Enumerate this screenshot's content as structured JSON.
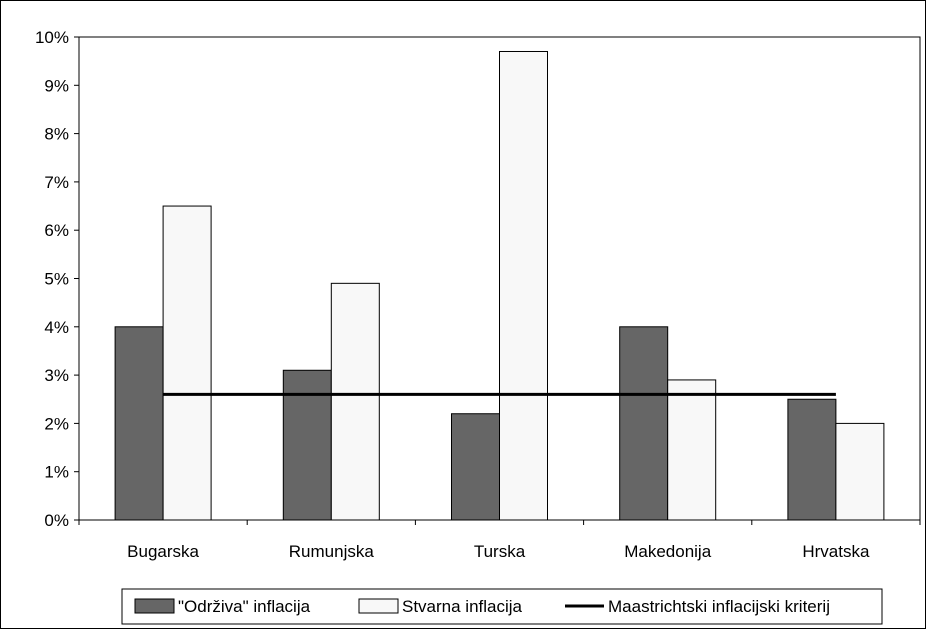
{
  "chart_data": {
    "type": "bar",
    "categories": [
      "Bugarska",
      "Rumunjska",
      "Turska",
      "Makedonija",
      "Hrvatska"
    ],
    "series": [
      {
        "name": "\"Održiva\" inflacija",
        "values": [
          4.0,
          3.1,
          2.2,
          4.0,
          2.5
        ],
        "color": "#666666"
      },
      {
        "name": "Stvarna inflacija",
        "values": [
          6.5,
          4.9,
          9.7,
          2.9,
          2.0
        ],
        "color": "#f8f8f8"
      }
    ],
    "reference_line": {
      "name": "Maastrichtski inflacijski kriterij",
      "value": 2.6,
      "color": "#000000"
    },
    "yticks": [
      "0%",
      "1%",
      "2%",
      "3%",
      "4%",
      "5%",
      "6%",
      "7%",
      "8%",
      "9%",
      "10%"
    ],
    "ylim": [
      0,
      10
    ],
    "grid": false,
    "legend": "bottom",
    "title": "",
    "xlabel": "",
    "ylabel": ""
  }
}
